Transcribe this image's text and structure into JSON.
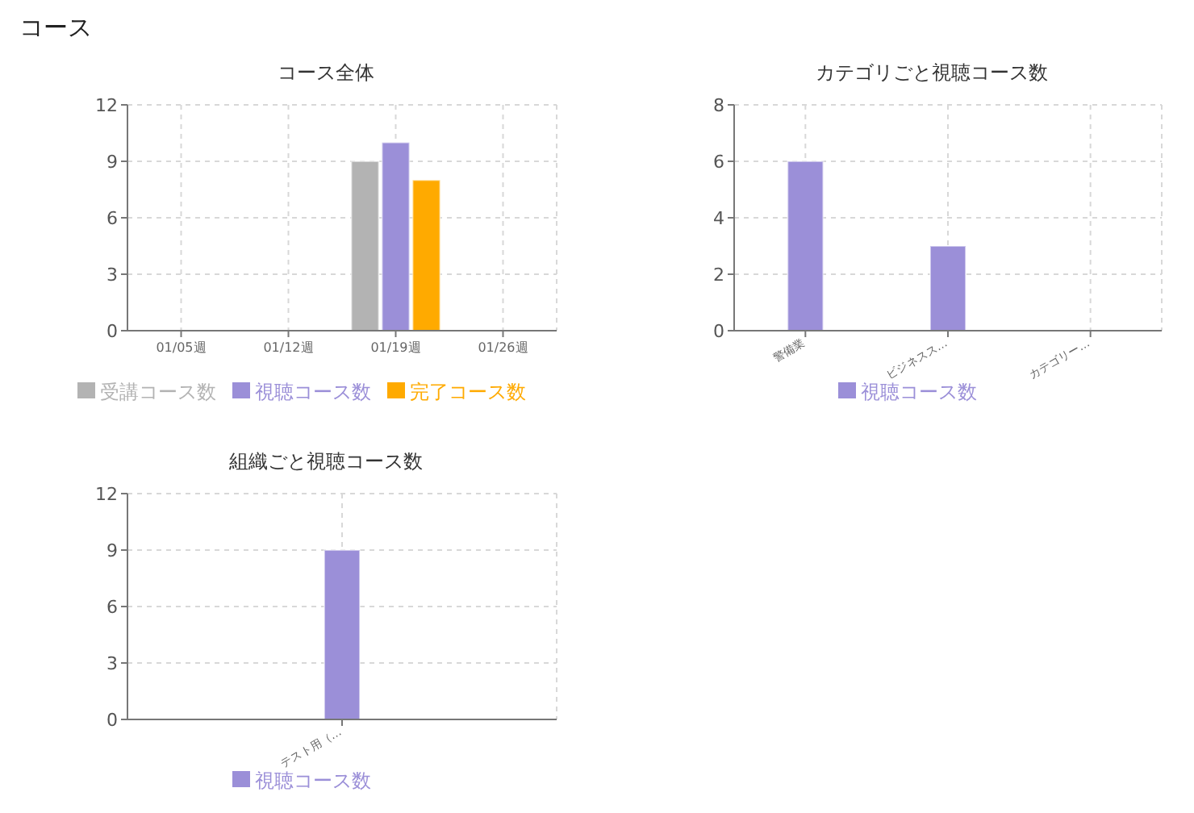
{
  "chart_data": [
    {
      "type": "bar",
      "title": "コース全体",
      "annotations": [
        "コース"
      ],
      "categories": [
        "01/05週",
        "01/12週",
        "01/19週",
        "01/26週"
      ],
      "series": [
        {
          "name": "受講コース数",
          "color": "#b3b3b3",
          "values": [
            0,
            0,
            9,
            0
          ]
        },
        {
          "name": "視聴コース数",
          "color": "#9b8fd8",
          "values": [
            0,
            0,
            10,
            0
          ]
        },
        {
          "name": "完了コース数",
          "color": "#ffaa00",
          "values": [
            0,
            0,
            8,
            0
          ]
        }
      ],
      "ylim": [
        0,
        12
      ],
      "yticks": [
        0,
        3,
        6,
        9,
        12
      ],
      "grid": true,
      "legend": "bottom"
    },
    {
      "type": "bar",
      "title": "カテゴリごと視聴コース数",
      "categories": [
        "警備業",
        "ビジネスス…",
        "カテゴリー…"
      ],
      "series": [
        {
          "name": "視聴コース数",
          "color": "#9b8fd8",
          "values": [
            6,
            3,
            0
          ]
        }
      ],
      "ylim": [
        0,
        8
      ],
      "yticks": [
        0,
        2,
        4,
        6,
        8
      ],
      "grid": true,
      "legend": "bottom"
    },
    {
      "type": "bar",
      "title": "組織ごと視聴コース数",
      "categories": [
        "テスト用（…"
      ],
      "series": [
        {
          "name": "視聴コース数",
          "color": "#9b8fd8",
          "values": [
            9
          ]
        }
      ],
      "ylim": [
        0,
        12
      ],
      "yticks": [
        0,
        3,
        6,
        9,
        12
      ],
      "grid": true,
      "legend": "bottom"
    }
  ]
}
